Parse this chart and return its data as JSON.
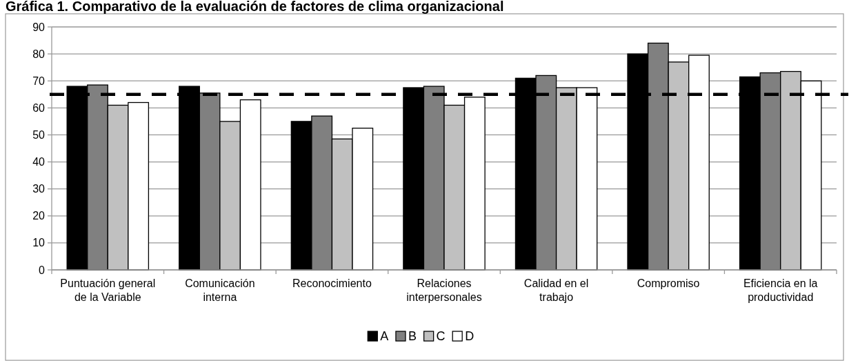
{
  "chart_data": {
    "type": "bar",
    "title": "Gráfica 1. Comparativo de la evaluación de factores de clima organizacional",
    "categories": [
      "Puntuación general de la Variable",
      "Comunicación interna",
      "Reconocimiento",
      "Relaciones interpersonales",
      "Calidad en el trabajo",
      "Compromiso",
      "Eficiencia en la productividad"
    ],
    "series": [
      {
        "name": "A",
        "color": "#000000",
        "values": [
          68,
          68,
          55,
          67.5,
          71,
          80,
          71.5
        ]
      },
      {
        "name": "B",
        "color": "#808080",
        "values": [
          68.5,
          65.5,
          57,
          68,
          72,
          84,
          73
        ]
      },
      {
        "name": "C",
        "color": "#c0c0c0",
        "values": [
          61,
          55,
          48.5,
          61,
          67.5,
          77,
          73.5
        ]
      },
      {
        "name": "D",
        "color": "#ffffff",
        "values": [
          62,
          63,
          52.5,
          64,
          67.5,
          79.5,
          70
        ]
      }
    ],
    "ylim": [
      0,
      90
    ],
    "yticks": [
      0,
      10,
      20,
      30,
      40,
      50,
      60,
      70,
      80,
      90
    ],
    "grid": "y",
    "legend": "bottom",
    "ref_lines": [
      {
        "axis": "y",
        "value": 65,
        "color": "#000000",
        "line_style": "dashed"
      }
    ]
  }
}
